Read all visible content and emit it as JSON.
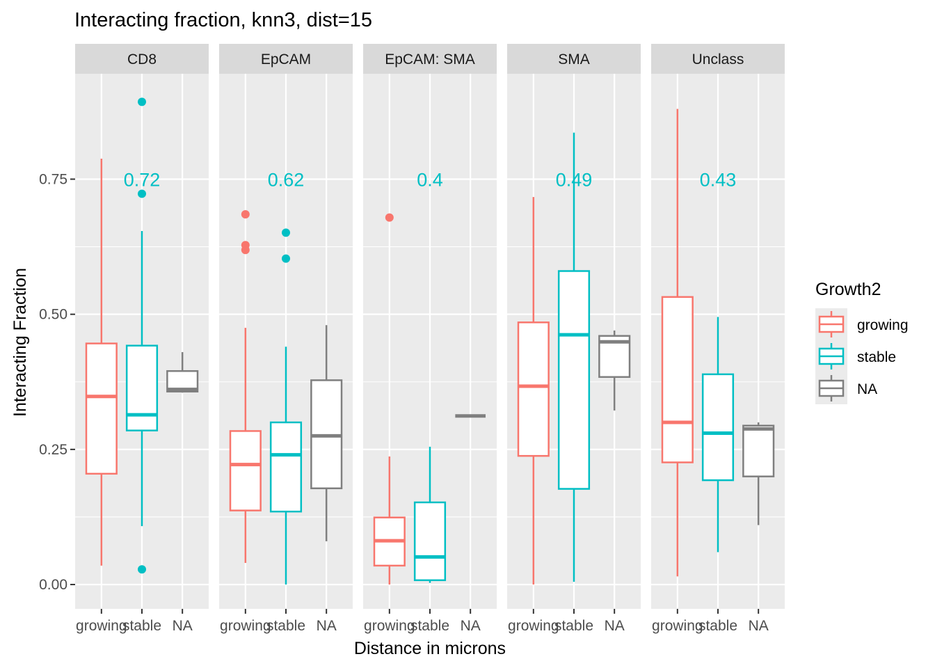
{
  "chart_data": {
    "type": "box",
    "title": "Interacting fraction, knn3, dist=15",
    "xlabel": "Distance in microns",
    "ylabel": "Interacting Fraction",
    "ylim": [
      -0.045,
      0.945
    ],
    "yticks": [
      0.0,
      0.25,
      0.5,
      0.75
    ],
    "ytick_labels": [
      "0.00",
      "0.25",
      "0.50",
      "0.75"
    ],
    "categories": [
      "growing",
      "stable",
      "NA"
    ],
    "legend": {
      "title": "Growth2",
      "position": "right",
      "entries": [
        {
          "label": "growing",
          "color": "#F8766D"
        },
        {
          "label": "stable",
          "color": "#00BFC4"
        },
        {
          "label": "NA",
          "color": "#7F7F7F"
        }
      ]
    },
    "panel_bg": "#EBEBEB",
    "strip_bg": "#D9D9D9",
    "annotation_color": "#00BFC4",
    "panels": [
      {
        "name": "CD8",
        "annotation": "0.72",
        "boxes": [
          {
            "group": "growing",
            "min": 0.035,
            "q1": 0.205,
            "median": 0.348,
            "q3": 0.446,
            "max": 0.788,
            "outliers": []
          },
          {
            "group": "stable",
            "min": 0.108,
            "q1": 0.285,
            "median": 0.314,
            "q3": 0.442,
            "max": 0.654,
            "outliers": [
              0.893,
              0.723,
              0.028
            ]
          },
          {
            "group": "NA",
            "min": 0.355,
            "q1": 0.357,
            "median": 0.361,
            "q3": 0.395,
            "max": 0.43,
            "outliers": []
          }
        ]
      },
      {
        "name": "EpCAM",
        "annotation": "0.62",
        "boxes": [
          {
            "group": "growing",
            "min": 0.04,
            "q1": 0.137,
            "median": 0.222,
            "q3": 0.284,
            "max": 0.475,
            "outliers": [
              0.685,
              0.628,
              0.619
            ]
          },
          {
            "group": "stable",
            "min": 0.0,
            "q1": 0.135,
            "median": 0.24,
            "q3": 0.3,
            "max": 0.44,
            "outliers": [
              0.651,
              0.603
            ]
          },
          {
            "group": "NA",
            "min": 0.08,
            "q1": 0.178,
            "median": 0.275,
            "q3": 0.378,
            "max": 0.48,
            "outliers": []
          }
        ]
      },
      {
        "name": "EpCAM: SMA",
        "annotation": "0.4",
        "boxes": [
          {
            "group": "growing",
            "min": 0.0,
            "q1": 0.035,
            "median": 0.081,
            "q3": 0.124,
            "max": 0.237,
            "outliers": [
              0.679
            ]
          },
          {
            "group": "stable",
            "min": 0.003,
            "q1": 0.008,
            "median": 0.051,
            "q3": 0.152,
            "max": 0.255,
            "outliers": []
          },
          {
            "group": "NA",
            "min": 0.312,
            "q1": 0.312,
            "median": 0.312,
            "q3": 0.312,
            "max": 0.312,
            "outliers": []
          }
        ]
      },
      {
        "name": "SMA",
        "annotation": "0.49",
        "boxes": [
          {
            "group": "growing",
            "min": 0.0,
            "q1": 0.238,
            "median": 0.367,
            "q3": 0.485,
            "max": 0.717,
            "outliers": []
          },
          {
            "group": "stable",
            "min": 0.005,
            "q1": 0.177,
            "median": 0.462,
            "q3": 0.58,
            "max": 0.836,
            "outliers": []
          },
          {
            "group": "NA",
            "min": 0.322,
            "q1": 0.384,
            "median": 0.449,
            "q3": 0.46,
            "max": 0.47,
            "outliers": []
          }
        ]
      },
      {
        "name": "Unclass",
        "annotation": "0.43",
        "boxes": [
          {
            "group": "growing",
            "min": 0.015,
            "q1": 0.226,
            "median": 0.3,
            "q3": 0.532,
            "max": 0.88,
            "outliers": []
          },
          {
            "group": "stable",
            "min": 0.06,
            "q1": 0.193,
            "median": 0.28,
            "q3": 0.389,
            "max": 0.495,
            "outliers": []
          },
          {
            "group": "NA",
            "min": 0.11,
            "q1": 0.2,
            "median": 0.288,
            "q3": 0.294,
            "max": 0.3,
            "outliers": []
          }
        ]
      }
    ]
  }
}
